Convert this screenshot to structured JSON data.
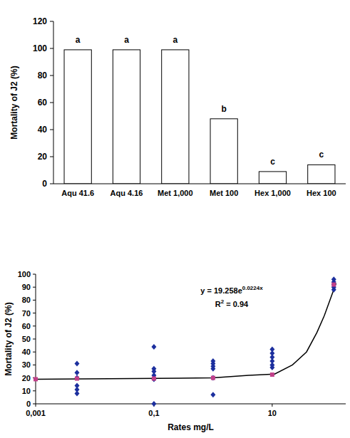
{
  "chart_data": [
    {
      "type": "bar",
      "categories": [
        "Aqu 41.6",
        "Aqu 4.16",
        "Met 1,000",
        "Met 100",
        "Hex 1,000",
        "Hex 100"
      ],
      "values": [
        99,
        99,
        99,
        48,
        9,
        14
      ],
      "color": "#ffffff",
      "ylim": [
        0,
        120
      ],
      "yticks": [
        0,
        20,
        40,
        60,
        80,
        100,
        120
      ],
      "ylabel": "Mortality of J2 (%)",
      "annotations": [
        "a",
        "a",
        "a",
        "b",
        "c",
        "c"
      ]
    },
    {
      "type": "scatter",
      "log": "x",
      "xlabel": "Rates mg/L",
      "ylabel": "Mortality of J2 (%)",
      "xlim": [
        0.001,
        175
      ],
      "xticks": [
        {
          "value": 0.001,
          "label": "0,001"
        },
        {
          "value": 0.1,
          "label": "0,1"
        },
        10
      ],
      "ylim": [
        0,
        100
      ],
      "yticks": [
        0,
        10,
        20,
        30,
        40,
        50,
        60,
        70,
        80,
        90,
        100
      ],
      "annotations": [
        {
          "text": "y = 19.258e",
          "sup": "0.0224x"
        },
        {
          "text": "R",
          "sup": "2",
          "after": " = 0.94"
        }
      ],
      "series": [
        {
          "type": "scatter",
          "marker": "diamond",
          "color": "#1c2f9e",
          "x": [
            0.005,
            0.005,
            0.005,
            0.005,
            0.005,
            0.005,
            0.1,
            0.1,
            0.1,
            0.1,
            0.1,
            0.1,
            1,
            1,
            1,
            1,
            1,
            1,
            10,
            10,
            10,
            10,
            10,
            10,
            110,
            110,
            110,
            110,
            110
          ],
          "values": [
            31,
            24,
            20,
            14,
            11,
            8,
            44,
            27,
            25,
            22,
            19,
            0,
            33,
            31,
            29,
            27,
            20,
            7,
            42,
            39,
            36,
            33,
            30,
            28,
            96,
            94,
            92,
            90,
            88
          ]
        },
        {
          "type": "scatter",
          "marker": "square",
          "color": "#c2408a",
          "x": [
            0.001,
            0.005,
            0.1,
            1,
            10,
            110
          ],
          "values": [
            19,
            19.5,
            19.5,
            20,
            22.5,
            92
          ]
        },
        {
          "type": "line",
          "line_style": "solid",
          "color": "#000000",
          "x": [
            0.001,
            1,
            4,
            11,
            22,
            38,
            57,
            76,
            100,
            120
          ],
          "values": [
            19,
            20,
            22,
            23,
            30,
            40,
            55,
            68,
            83,
            93
          ]
        }
      ]
    }
  ]
}
